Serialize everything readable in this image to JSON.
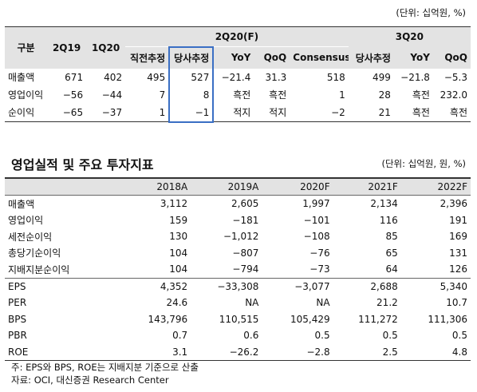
{
  "unit1": "(단위: 십억원, %)",
  "table1": {
    "columns": [
      "구분",
      "2Q19",
      "1Q20"
    ],
    "groups": [
      "2Q20(F)",
      "3Q20"
    ],
    "subcolumns": [
      "직전추정",
      "당사추정",
      "YoY",
      "QoQ",
      "Consensus",
      "당사추정",
      "YoY",
      "QoQ"
    ],
    "rows": [
      [
        "매출액",
        "671",
        "402",
        "495",
        "527",
        "−21.4",
        "31.3",
        "518",
        "499",
        "−21.8",
        "−5.3"
      ],
      [
        "영업이익",
        "−56",
        "−44",
        "7",
        "8",
        "흑전",
        "흑전",
        "1",
        "28",
        "흑전",
        "232.0"
      ],
      [
        "순이익",
        "−65",
        "−37",
        "1",
        "−1",
        "적지",
        "적지",
        "−2",
        "21",
        "흑전",
        "흑전"
      ]
    ]
  },
  "title2": "영업실적 및 주요 투자지표",
  "unit2": "(단위: 십억원, 원, %)",
  "table2": {
    "columns": [
      "2018A",
      "2019A",
      "2020F",
      "2021F",
      "2022F"
    ],
    "rows": [
      [
        "매출액",
        "3,112",
        "2,605",
        "1,997",
        "2,134",
        "2,396"
      ],
      [
        "영업이익",
        "159",
        "−181",
        "−101",
        "116",
        "191"
      ],
      [
        "세전순이익",
        "130",
        "−1,012",
        "−108",
        "85",
        "169"
      ],
      [
        "총당기순이익",
        "104",
        "−807",
        "−76",
        "65",
        "131"
      ],
      [
        "지배지분순이익",
        "104",
        "−794",
        "−73",
        "64",
        "126"
      ],
      [
        "EPS",
        "4,352",
        "−33,308",
        "−3,077",
        "2,688",
        "5,340"
      ],
      [
        "PER",
        "24.6",
        "NA",
        "NA",
        "21.2",
        "10.7"
      ],
      [
        "BPS",
        "143,796",
        "110,515",
        "105,429",
        "111,272",
        "111,306"
      ],
      [
        "PBR",
        "0.7",
        "0.6",
        "0.5",
        "0.5",
        "0.5"
      ],
      [
        "ROE",
        "3.1",
        "−26.2",
        "−2.8",
        "2.5",
        "4.8"
      ]
    ]
  },
  "notes": [
    "주: EPS와 BPS, ROE는 지배지분 기준으로 산출",
    "자료: OCI, 대신증권 Research Center"
  ]
}
